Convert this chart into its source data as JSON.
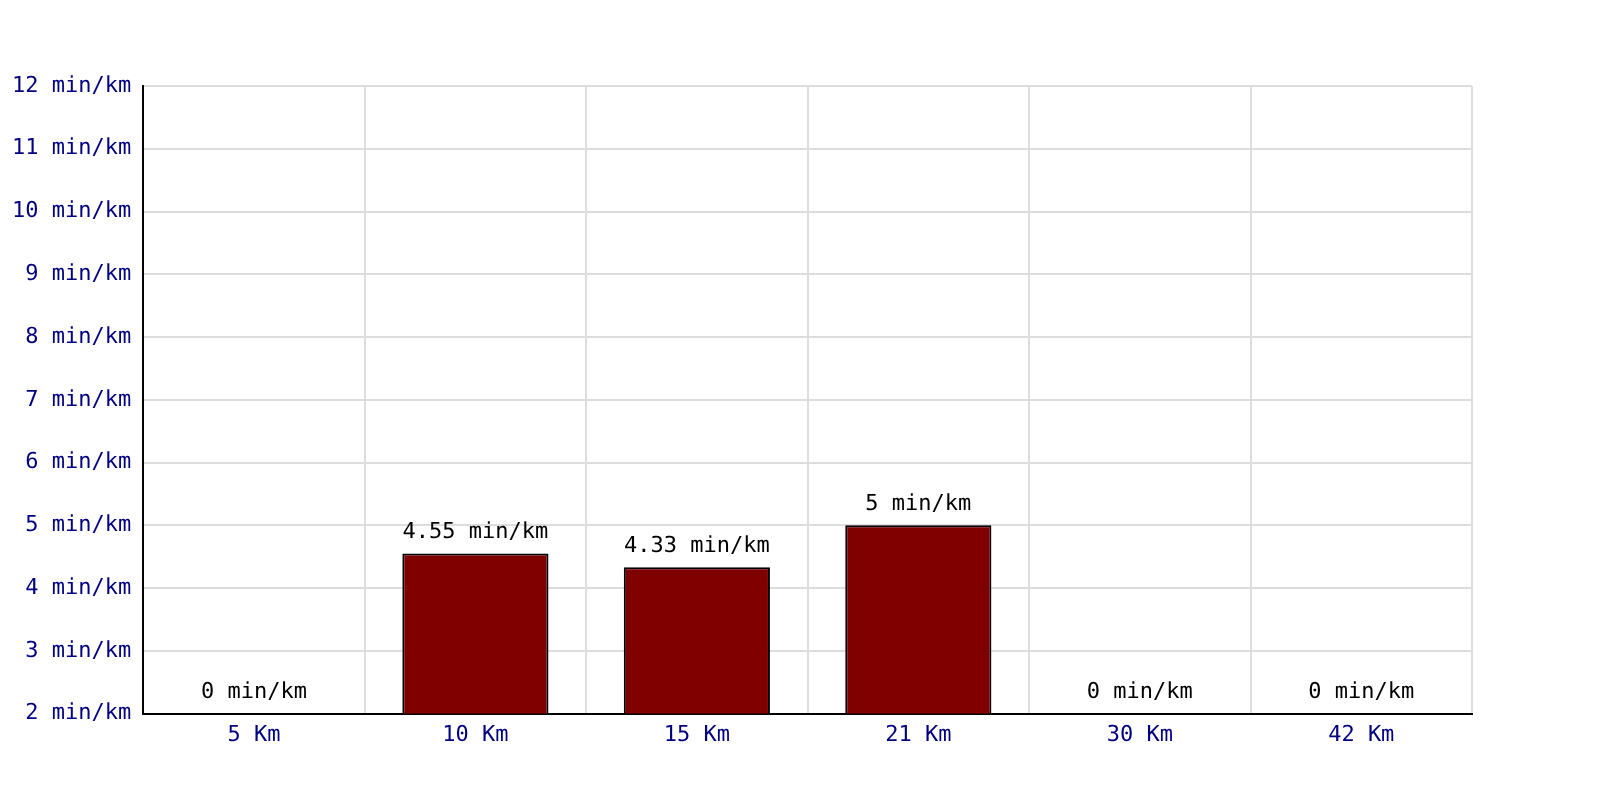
{
  "chart_data": {
    "type": "bar",
    "categories": [
      "5 Km",
      "10 Km",
      "15 Km",
      "21 Km",
      "30 Km",
      "42 Km"
    ],
    "values": [
      null,
      4.55,
      4.33,
      5,
      null,
      null
    ],
    "value_labels": [
      "0 min/km",
      "4.55 min/km",
      "4.33 min/km",
      "5 min/km",
      "0 min/km",
      "0 min/km"
    ],
    "color": "#800000",
    "ylim": [
      2,
      12
    ],
    "yticks": [
      {
        "value": 2,
        "label": "2 min/km"
      },
      {
        "value": 3,
        "label": "3 min/km"
      },
      {
        "value": 4,
        "label": "4 min/km"
      },
      {
        "value": 5,
        "label": "5 min/km"
      },
      {
        "value": 6,
        "label": "6 min/km"
      },
      {
        "value": 7,
        "label": "7 min/km"
      },
      {
        "value": 8,
        "label": "8 min/km"
      },
      {
        "value": 9,
        "label": "9 min/km"
      },
      {
        "value": 10,
        "label": "10 min/km"
      },
      {
        "value": 11,
        "label": "11 min/km"
      },
      {
        "value": 12,
        "label": "12 min/km"
      }
    ],
    "grid": true,
    "legend": false
  }
}
